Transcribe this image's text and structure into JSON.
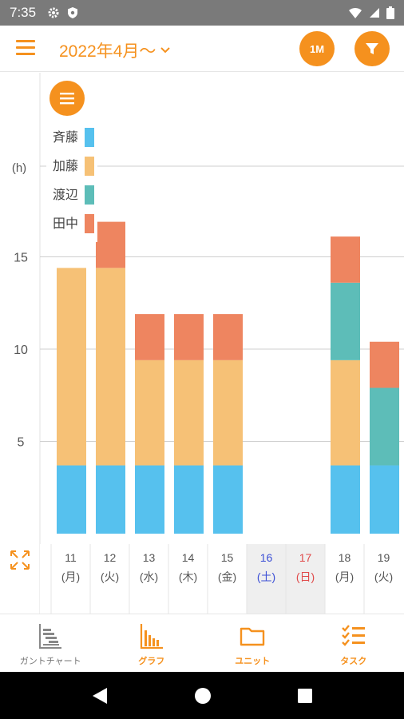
{
  "status_bar": {
    "time": "7:35"
  },
  "app_bar": {
    "period_label": "2022年4月〜",
    "range_button_label": "1M"
  },
  "colors": {
    "accent": "#f5911e",
    "saito": "#56c1ee",
    "kato": "#f6c176",
    "watanabe": "#5dbdb8",
    "tanaka": "#ee8560",
    "saturday": "#3b4fd6",
    "sunday": "#e04a4a"
  },
  "chart_data": {
    "type": "bar",
    "stacked": true,
    "ylabel": "(h)",
    "ylim": [
      0,
      17
    ],
    "yticks": [
      5,
      10,
      15
    ],
    "grid": true,
    "legend_placement": "top-left",
    "categories": [
      "11",
      "12",
      "13",
      "14",
      "15",
      "16",
      "17",
      "18",
      "19"
    ],
    "weekdays": [
      "(月)",
      "(火)",
      "(水)",
      "(木)",
      "(金)",
      "(土)",
      "(日)",
      "(月)",
      "(火)"
    ],
    "series": [
      {
        "name": "斉藤",
        "color": "#56c1ee",
        "values": [
          3.7,
          3.7,
          3.7,
          3.7,
          3.7,
          0,
          0,
          3.7,
          3.7
        ]
      },
      {
        "name": "加藤",
        "color": "#f6c176",
        "values": [
          10.7,
          10.7,
          5.7,
          5.7,
          5.7,
          0,
          0,
          5.7,
          0
        ]
      },
      {
        "name": "渡辺",
        "color": "#5dbdb8",
        "values": [
          0,
          0,
          0,
          0,
          0,
          0,
          0,
          4.2,
          4.2
        ]
      },
      {
        "name": "田中",
        "color": "#ee8560",
        "values": [
          0,
          2.5,
          2.5,
          2.5,
          2.5,
          0,
          0,
          2.5,
          2.5
        ]
      }
    ]
  },
  "bottom_nav": {
    "gantt": "ガントチャート",
    "graph": "グラフ",
    "unit": "ユニット",
    "task": "タスク"
  }
}
